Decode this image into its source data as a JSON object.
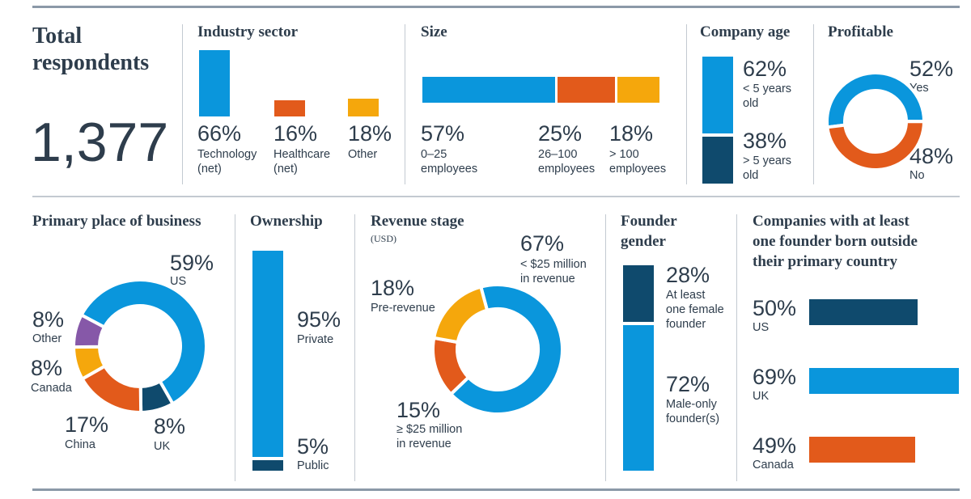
{
  "colors": {
    "blue": "#0a96dc",
    "orange": "#e25a1b",
    "yellow": "#f5a70c",
    "navy": "#0f4a6d",
    "purple": "#8658a8",
    "text": "#2e3d4c"
  },
  "total": {
    "title": "Total respondents",
    "value": "1,377"
  },
  "chart_data": [
    {
      "id": "industry",
      "type": "bar",
      "title": "Industry sector",
      "categories": [
        "Technology\n(net)",
        "Healthcare\n(net)",
        "Other"
      ],
      "values": [
        66,
        16,
        18
      ],
      "labels": [
        "66%",
        "16%",
        "18%"
      ],
      "colors": [
        "#0a96dc",
        "#e25a1b",
        "#f5a70c"
      ]
    },
    {
      "id": "size",
      "type": "bar",
      "orientation": "stacked-horizontal",
      "title": "Size",
      "categories": [
        "0–25\nemployees",
        "26–100\nemployees",
        "> 100\nemployees"
      ],
      "values": [
        57,
        25,
        18
      ],
      "labels": [
        "57%",
        "25%",
        "18%"
      ],
      "colors": [
        "#0a96dc",
        "#e25a1b",
        "#f5a70c"
      ]
    },
    {
      "id": "age",
      "type": "bar",
      "orientation": "stacked-vertical",
      "title": "Company age",
      "categories": [
        "< 5 years\nold",
        "> 5 years\nold"
      ],
      "values": [
        62,
        38
      ],
      "labels": [
        "62%",
        "38%"
      ],
      "colors": [
        "#0a96dc",
        "#0f4a6d"
      ]
    },
    {
      "id": "profitable",
      "type": "pie",
      "donut": true,
      "title": "Profitable",
      "categories": [
        "Yes",
        "No"
      ],
      "values": [
        52,
        48
      ],
      "labels": [
        "52%",
        "48%"
      ],
      "colors": [
        "#0a96dc",
        "#e25a1b"
      ]
    },
    {
      "id": "place",
      "type": "pie",
      "donut": true,
      "title": "Primary place of business",
      "categories": [
        "US",
        "UK",
        "China",
        "Canada",
        "Other"
      ],
      "values": [
        59,
        8,
        17,
        8,
        8
      ],
      "labels": [
        "59%",
        "8%",
        "17%",
        "8%",
        "8%"
      ],
      "colors": [
        "#0a96dc",
        "#0f4a6d",
        "#e25a1b",
        "#f5a70c",
        "#8658a8"
      ]
    },
    {
      "id": "ownership",
      "type": "bar",
      "orientation": "stacked-vertical",
      "title": "Ownership",
      "categories": [
        "Private",
        "Public"
      ],
      "values": [
        95,
        5
      ],
      "labels": [
        "95%",
        "5%"
      ],
      "colors": [
        "#0a96dc",
        "#0f4a6d"
      ]
    },
    {
      "id": "revenue",
      "type": "pie",
      "donut": true,
      "title": "Revenue stage",
      "subtitle": "(USD)",
      "categories": [
        "< $25 million\nin revenue",
        "≥ $25 million\nin revenue",
        "Pre-revenue"
      ],
      "values": [
        67,
        15,
        18
      ],
      "labels": [
        "67%",
        "15%",
        "18%"
      ],
      "colors": [
        "#0a96dc",
        "#e25a1b",
        "#f5a70c"
      ]
    },
    {
      "id": "gender",
      "type": "bar",
      "orientation": "stacked-vertical",
      "title": "Founder\ngender",
      "categories": [
        "At least\none female\nfounder",
        "Male-only\nfounder(s)"
      ],
      "values": [
        28,
        72
      ],
      "labels": [
        "28%",
        "72%"
      ],
      "colors": [
        "#0f4a6d",
        "#0a96dc"
      ]
    },
    {
      "id": "foreign",
      "type": "bar",
      "orientation": "horizontal",
      "title": "Companies with at least\none founder born outside\ntheir primary country",
      "categories": [
        "US",
        "UK",
        "Canada"
      ],
      "values": [
        50,
        69,
        49
      ],
      "labels": [
        "50%",
        "69%",
        "49%"
      ],
      "colors": [
        "#0f4a6d",
        "#0a96dc",
        "#e25a1b"
      ]
    }
  ]
}
